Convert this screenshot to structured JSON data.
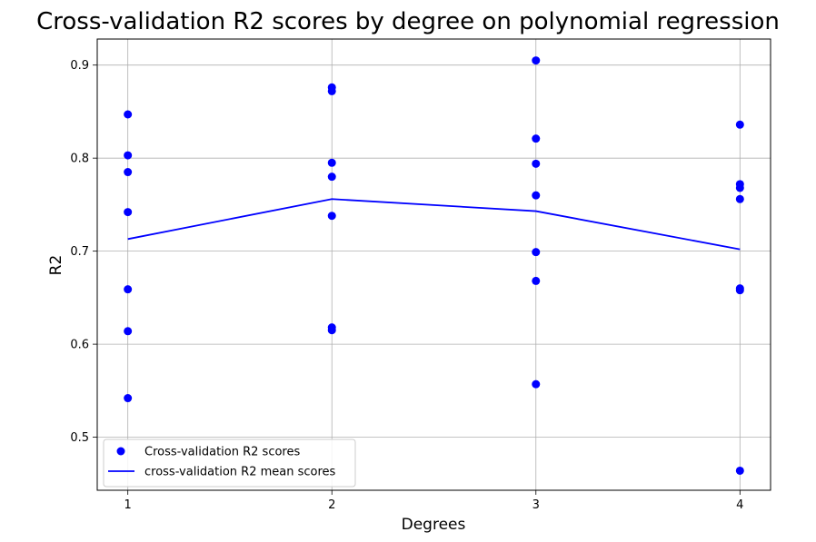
{
  "chart_data": {
    "type": "scatter",
    "title": "Cross-validation R2 scores by degree on polynomial regression",
    "xlabel": "Degrees",
    "ylabel": "R2",
    "x_ticks": [
      "1",
      "2",
      "3",
      "4"
    ],
    "y_ticks": [
      "0.5",
      "0.6",
      "0.7",
      "0.8",
      "0.9"
    ],
    "xlim": [
      0.85,
      4.15
    ],
    "ylim": [
      0.443,
      0.928
    ],
    "grid": true,
    "legend_position": "lower-left",
    "series": [
      {
        "name": "Cross-validation R2 scores",
        "kind": "scatter",
        "color": "#0000ff",
        "points": [
          {
            "x": 1,
            "y": 0.847
          },
          {
            "x": 1,
            "y": 0.803
          },
          {
            "x": 1,
            "y": 0.785
          },
          {
            "x": 1,
            "y": 0.742
          },
          {
            "x": 1,
            "y": 0.659
          },
          {
            "x": 1,
            "y": 0.614
          },
          {
            "x": 1,
            "y": 0.542
          },
          {
            "x": 2,
            "y": 0.876
          },
          {
            "x": 2,
            "y": 0.872
          },
          {
            "x": 2,
            "y": 0.795
          },
          {
            "x": 2,
            "y": 0.78
          },
          {
            "x": 2,
            "y": 0.738
          },
          {
            "x": 2,
            "y": 0.618
          },
          {
            "x": 2,
            "y": 0.615
          },
          {
            "x": 3,
            "y": 0.905
          },
          {
            "x": 3,
            "y": 0.821
          },
          {
            "x": 3,
            "y": 0.794
          },
          {
            "x": 3,
            "y": 0.76
          },
          {
            "x": 3,
            "y": 0.699
          },
          {
            "x": 3,
            "y": 0.668
          },
          {
            "x": 3,
            "y": 0.557
          },
          {
            "x": 4,
            "y": 0.836
          },
          {
            "x": 4,
            "y": 0.772
          },
          {
            "x": 4,
            "y": 0.768
          },
          {
            "x": 4,
            "y": 0.756
          },
          {
            "x": 4,
            "y": 0.66
          },
          {
            "x": 4,
            "y": 0.658
          },
          {
            "x": 4,
            "y": 0.464
          }
        ]
      },
      {
        "name": "cross-validation R2 mean scores",
        "kind": "line",
        "color": "#0000ff",
        "x": [
          1,
          2,
          3,
          4
        ],
        "values": [
          0.713,
          0.756,
          0.743,
          0.702
        ]
      }
    ]
  }
}
